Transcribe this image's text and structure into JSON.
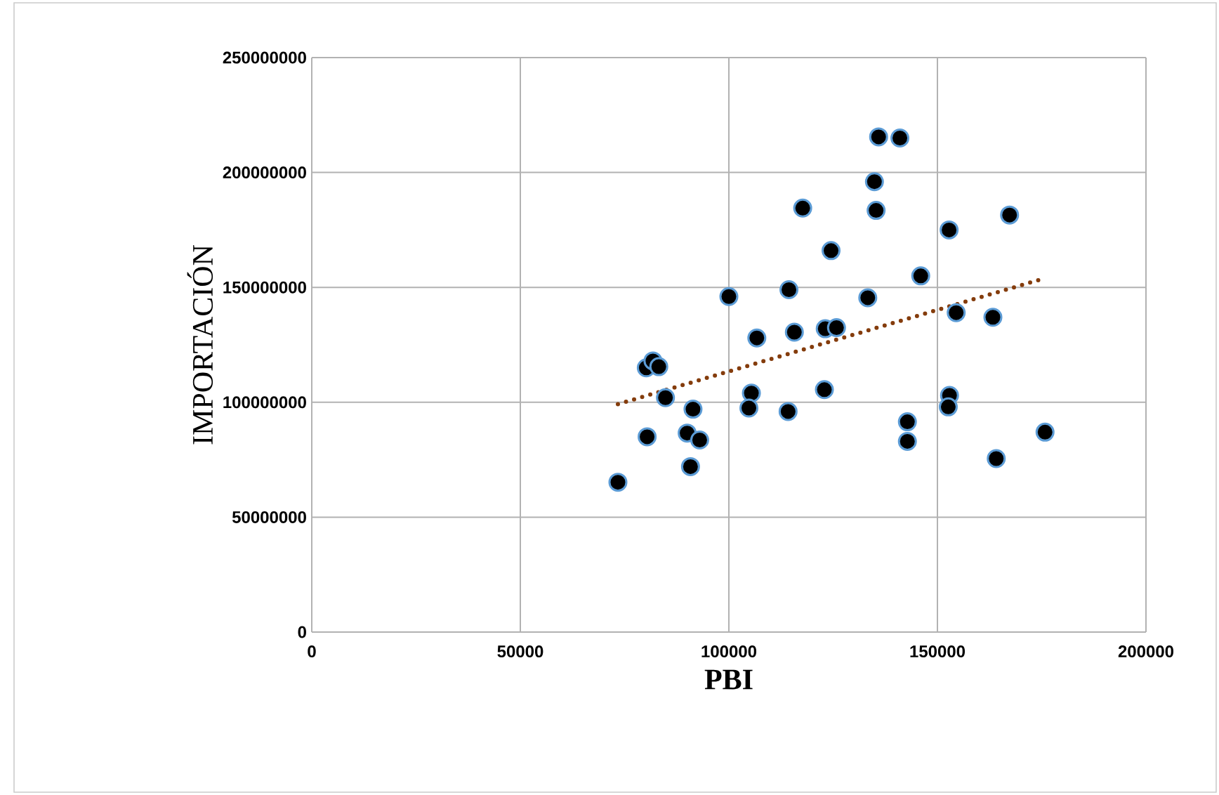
{
  "chart_data": {
    "type": "scatter",
    "xlabel": "PBI",
    "ylabel": "IMPORTACIÓN",
    "xlim": [
      0,
      200000
    ],
    "ylim": [
      0,
      250000000
    ],
    "xticks": [
      0,
      50000,
      100000,
      150000,
      200000
    ],
    "yticks": [
      0,
      50000000,
      100000000,
      150000000,
      200000000,
      250000000
    ],
    "grid": true,
    "marker": "circle",
    "series": [
      {
        "color": "#000000",
        "x": [
          73400,
          80400,
          80200,
          81800,
          83200,
          84800,
          91400,
          90800,
          90400,
          90000,
          93000,
          90800,
          100000,
          106700,
          105400,
          104800,
          114400,
          115700,
          114200,
          117700,
          123100,
          125800,
          124500,
          122900,
          133300,
          134900,
          135300,
          135900,
          141000,
          146000,
          142800,
          142800,
          152800,
          154500,
          152900,
          152600,
          163300,
          164100,
          167300,
          175800
        ],
        "values": [
          65200000,
          85000000,
          115000000,
          118000000,
          115500000,
          102000000,
          97000000,
          null,
          null,
          86600000,
          83600000,
          72000000,
          146000000,
          128000000,
          104000000,
          97500000,
          149000000,
          130500000,
          96000000,
          184500000,
          132000000,
          132500000,
          166000000,
          105500000,
          145500000,
          196000000,
          183500000,
          215500000,
          215000000,
          155000000,
          91500000,
          83000000,
          175000000,
          139000000,
          103000000,
          98000000,
          137000000,
          75500000,
          181500000,
          87000000
        ]
      },
      {
        "type": "line",
        "color": "#843c0c",
        "line_style": "dotted",
        "marker": "none",
        "x": [
          73400,
          175800
        ],
        "values": [
          99200000,
          154000000
        ]
      }
    ]
  }
}
